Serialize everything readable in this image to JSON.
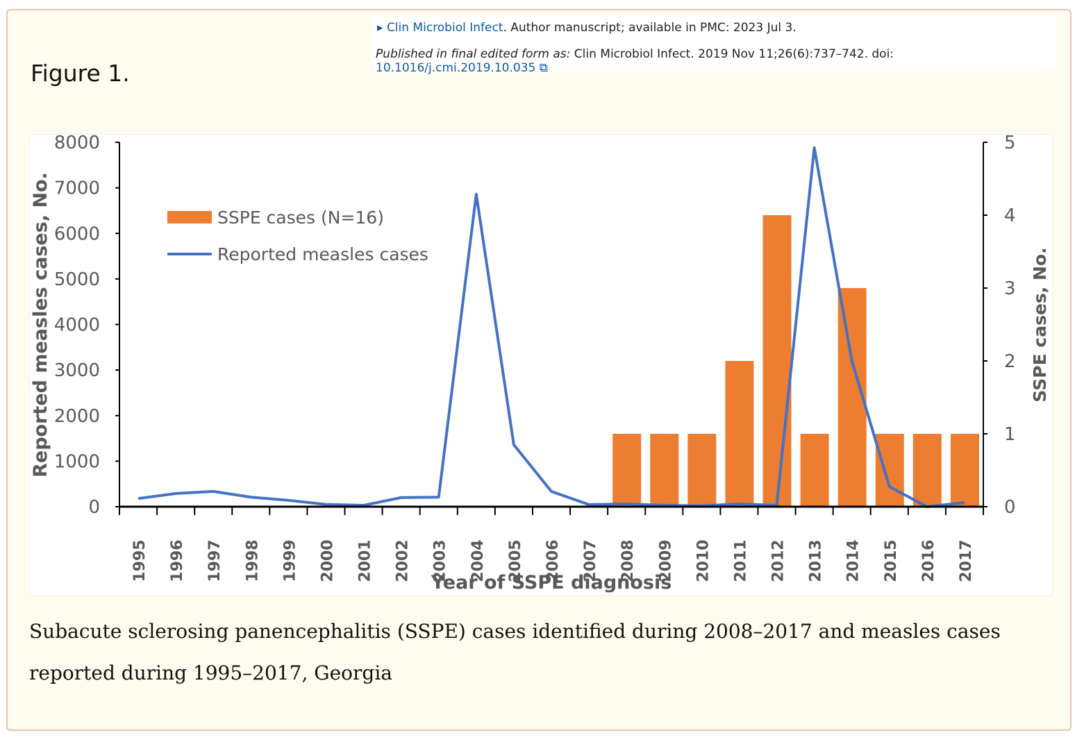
{
  "header": {
    "journal": "Clin Microbiol Infect",
    "line1_rest": ". Author manuscript; available in PMC: 2023 Jul 3.",
    "published_label": "Published in final edited form as:",
    "published_text": " Clin Microbiol Infect. 2019 Nov 11;26(6):737–742. doi: ",
    "doi": "10.1016/j.cmi.2019.10.035"
  },
  "figure_title": "Figure 1.",
  "caption": "Subacute sclerosing panencephalitis (SSPE) cases identified during 2008–2017 and measles cases reported during 1995–2017, Georgia",
  "colors": {
    "bar": "#ed7d31",
    "line": "#4472c4"
  },
  "chart_data": {
    "type": "bar+line",
    "categories": [
      "1995",
      "1996",
      "1997",
      "1998",
      "1999",
      "2000",
      "2001",
      "2002",
      "2003",
      "2004",
      "2005",
      "2006",
      "2007",
      "2008",
      "2009",
      "2010",
      "2011",
      "2012",
      "2013",
      "2014",
      "2015",
      "2016",
      "2017"
    ],
    "series": [
      {
        "name": "SSPE cases (N=16)",
        "type": "bar",
        "axis": "right",
        "values": [
          0,
          0,
          0,
          0,
          0,
          0,
          0,
          0,
          0,
          0,
          0,
          0,
          0,
          1,
          1,
          1,
          2,
          4,
          1,
          3,
          1,
          1,
          1
        ]
      },
      {
        "name": "Reported measles cases",
        "type": "line",
        "axis": "left",
        "values": [
          180,
          290,
          335,
          210,
          140,
          50,
          30,
          200,
          210,
          6860,
          1360,
          335,
          45,
          60,
          30,
          20,
          60,
          30,
          7880,
          3200,
          440,
          0,
          90
        ]
      }
    ],
    "xlabel": "Year of SSPE diagnosis",
    "ylabel": "Reported measles cases, No.",
    "y2label": "SSPE cases, No.",
    "ylim": [
      0,
      8000
    ],
    "yticks": [
      0,
      1000,
      2000,
      3000,
      4000,
      5000,
      6000,
      7000,
      8000
    ],
    "y2lim": [
      0,
      5
    ],
    "y2ticks": [
      0,
      1,
      2,
      3,
      4,
      5
    ],
    "legend": "top-left",
    "grid": false
  }
}
